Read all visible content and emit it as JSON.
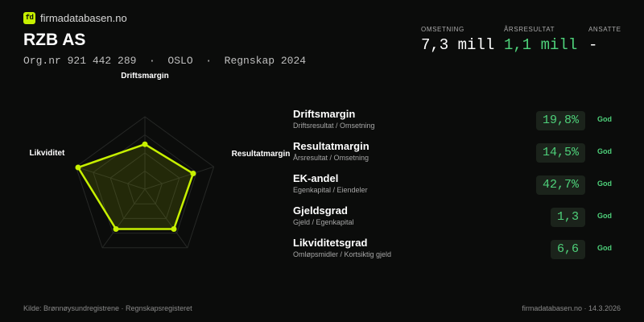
{
  "brand": {
    "logo_text": "fd",
    "name": "firmadatabasen.no",
    "accent": "#c7f000"
  },
  "company": {
    "name": "RZB AS",
    "meta": "Org.nr 921 442 289  ·  OSLO  ·  Regnskap 2024"
  },
  "kpis": [
    {
      "label": "OMSETNING",
      "value": "7,3 mill",
      "color": "#ffffff"
    },
    {
      "label": "ÅRSRESULTAT",
      "value": "1,1 mill",
      "color": "#4ed17a"
    },
    {
      "label": "ANSATTE",
      "value": "-",
      "color": "#ffffff"
    }
  ],
  "radar": {
    "axes": [
      "Driftsmargin",
      "Resultatmargin",
      "EK-andel",
      "Gjeldsgrad",
      "Likviditet"
    ],
    "values": [
      0.62,
      0.7,
      0.68,
      0.68,
      0.97
    ],
    "color": "#c7f000"
  },
  "metrics": [
    {
      "name": "Driftsmargin",
      "sub": "Driftsresultat / Omsetning",
      "value": "19,8%",
      "status": "God"
    },
    {
      "name": "Resultatmargin",
      "sub": "Årsresultat / Omsetning",
      "value": "14,5%",
      "status": "God"
    },
    {
      "name": "EK-andel",
      "sub": "Egenkapital / Eiendeler",
      "value": "42,7%",
      "status": "God"
    },
    {
      "name": "Gjeldsgrad",
      "sub": "Gjeld / Egenkapital",
      "value": "1,3",
      "status": "God"
    },
    {
      "name": "Likviditetsgrad",
      "sub": "Omløpsmidler / Kortsiktig gjeld",
      "value": "6,6",
      "status": "God"
    }
  ],
  "footer": {
    "source": "Kilde: Brønnøysundregistrene · Regnskapsregisteret",
    "site_date": "firmadatabasen.no · 14.3.2026"
  }
}
